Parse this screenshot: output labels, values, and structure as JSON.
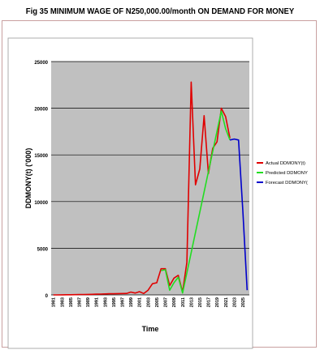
{
  "title": "Fig 35  MINIMUM WAGE OF N250,000.00/month ON DEMAND FOR MONEY",
  "colors": {
    "actual": "#e00000",
    "predicted": "#22dd22",
    "forecast": "#0000cc",
    "plot_background": "#c0c0c0",
    "panel_background": "#ffffff"
  },
  "chart_data": {
    "type": "line",
    "title": "Fig 35  MINIMUM WAGE OF N250,000.00/month ON DEMAND FOR MONEY",
    "xlabel": "Time",
    "ylabel": "DDMONY(t) ('000)",
    "ylim": [
      0,
      25000
    ],
    "yticks": [
      0,
      5000,
      10000,
      15000,
      20000,
      25000
    ],
    "grid": true,
    "legend_position": "right",
    "xticks": [
      "1981",
      "1983",
      "1985",
      "1987",
      "1989",
      "1991",
      "1993",
      "1995",
      "1997",
      "1999",
      "2001",
      "2003",
      "2005",
      "2007",
      "2009",
      "2011",
      "2013",
      "2015",
      "2017",
      "2019",
      "2021",
      "2023",
      "2025"
    ],
    "x": [
      1981,
      1982,
      1983,
      1984,
      1985,
      1986,
      1987,
      1988,
      1989,
      1990,
      1991,
      1992,
      1993,
      1994,
      1995,
      1996,
      1997,
      1998,
      1999,
      2000,
      2001,
      2002,
      2003,
      2004,
      2005,
      2006,
      2007,
      2008,
      2009,
      2010,
      2011,
      2012,
      2013,
      2014,
      2015,
      2016,
      2017,
      2018,
      2019,
      2020,
      2021,
      2022,
      2023,
      2024,
      2025,
      2026
    ],
    "series": [
      {
        "name": "Actual DDMONY(t)",
        "color": "#e00000",
        "x": [
          1981,
          1982,
          1983,
          1984,
          1985,
          1986,
          1987,
          1988,
          1989,
          1990,
          1991,
          1992,
          1993,
          1994,
          1995,
          1996,
          1997,
          1998,
          1999,
          2000,
          2001,
          2002,
          2003,
          2004,
          2005,
          2006,
          2007,
          2008,
          2009,
          2010,
          2011,
          2012,
          2013,
          2014,
          2015,
          2016,
          2017,
          2018,
          2019,
          2020,
          2021,
          2022
        ],
        "values": [
          0,
          0,
          10,
          20,
          20,
          30,
          40,
          40,
          50,
          60,
          80,
          90,
          100,
          120,
          120,
          140,
          150,
          160,
          300,
          200,
          350,
          150,
          500,
          1200,
          1300,
          2800,
          2800,
          1000,
          1800,
          2100,
          300,
          3500,
          22800,
          11800,
          13500,
          19200,
          13000,
          15700,
          16400,
          20000,
          19100,
          16800
        ]
      },
      {
        "name": "Predicted DDMONY",
        "color": "#22dd22",
        "x": [
          2006,
          2007,
          2008,
          2009,
          2010,
          2011,
          2020,
          2021,
          2022
        ],
        "values": [
          2600,
          2700,
          500,
          1300,
          1900,
          200,
          19700,
          17800,
          16600
        ]
      },
      {
        "name": "Forecast DDMONY(",
        "color": "#0000cc",
        "x": [
          2022,
          2023,
          2024,
          2025,
          2026
        ],
        "values": [
          16600,
          16700,
          16600,
          9000,
          500
        ]
      }
    ]
  }
}
